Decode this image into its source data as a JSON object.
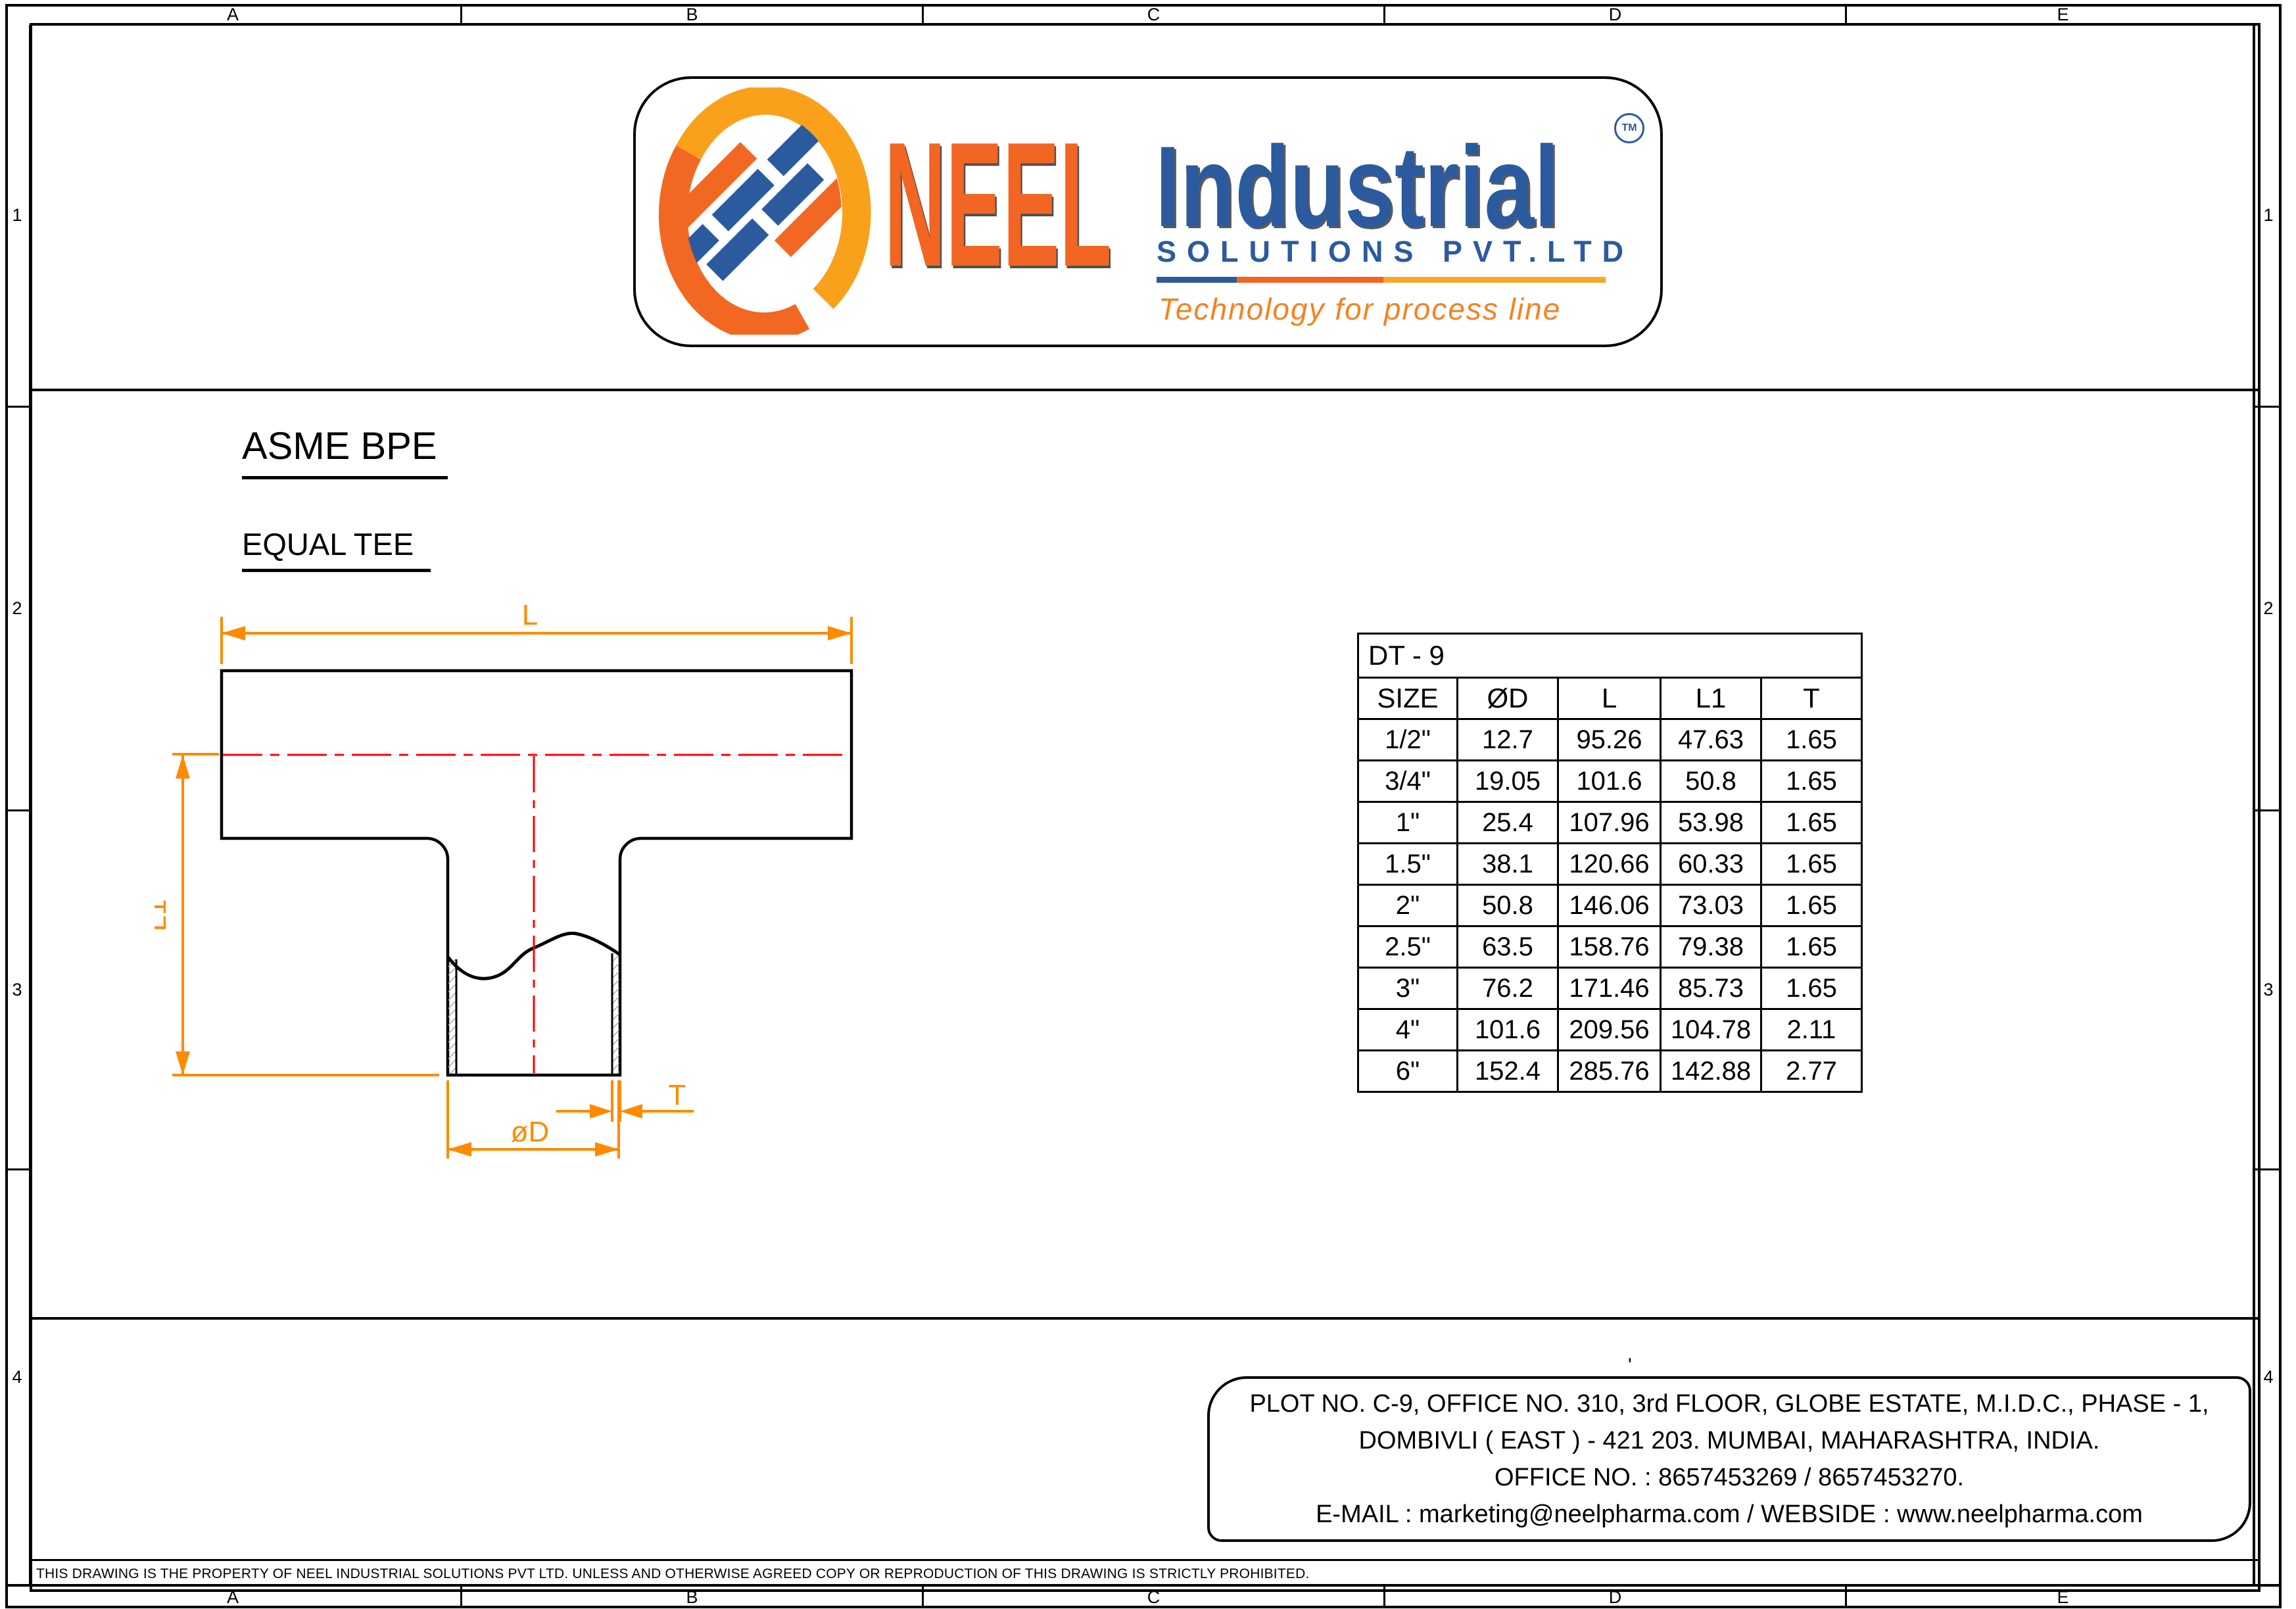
{
  "sheet": {
    "columns": [
      "A",
      "B",
      "C",
      "D",
      "E"
    ],
    "rows": [
      "1",
      "2",
      "3",
      "4"
    ],
    "disclaimer": "THIS DRAWING IS THE PROPERTY OF NEEL INDUSTRIAL SOLUTIONS PVT LTD. UNLESS AND OTHERWISE AGREED COPY OR REPRODUCTION OF THIS DRAWING IS STRICTLY PROHIBITED."
  },
  "logo": {
    "brand": "NEEL",
    "brand2": "Industrial",
    "tm": "TM",
    "subtitle": "SOLUTIONS PVT.LTD",
    "tagline": "Technology for process line",
    "colors": {
      "orange": "#F26522",
      "blue": "#2B5B9E",
      "amber": "#F9A11B"
    }
  },
  "titles": {
    "standard": "ASME BPE",
    "component": "EQUAL TEE"
  },
  "drawing": {
    "labels": {
      "length": "L",
      "branch_height": "L1",
      "diameter": "øD",
      "thickness": "T"
    },
    "colors": {
      "dimension": "#FF8A00",
      "centerline": "#FF0000",
      "outline": "#000000"
    }
  },
  "table": {
    "title": "DT - 9",
    "headers": [
      "SIZE",
      "ØD",
      "L",
      "L1",
      "T"
    ],
    "rows": [
      [
        "1/2\"",
        "12.7",
        "95.26",
        "47.63",
        "1.65"
      ],
      [
        "3/4\"",
        "19.05",
        "101.6",
        "50.8",
        "1.65"
      ],
      [
        "1\"",
        "25.4",
        "107.96",
        "53.98",
        "1.65"
      ],
      [
        "1.5\"",
        "38.1",
        "120.66",
        "60.33",
        "1.65"
      ],
      [
        "2\"",
        "50.8",
        "146.06",
        "73.03",
        "1.65"
      ],
      [
        "2.5\"",
        "63.5",
        "158.76",
        "79.38",
        "1.65"
      ],
      [
        "3\"",
        "76.2",
        "171.46",
        "85.73",
        "1.65"
      ],
      [
        "4\"",
        "101.6",
        "209.56",
        "104.78",
        "2.11"
      ],
      [
        "6\"",
        "152.4",
        "285.76",
        "142.88",
        "2.77"
      ]
    ]
  },
  "address": {
    "lines": [
      "PLOT NO. C-9, OFFICE NO. 310, 3rd FLOOR, GLOBE ESTATE, M.I.D.C., PHASE - 1,",
      "DOMBIVLI ( EAST ) - 421 203. MUMBAI, MAHARASHTRA, INDIA.",
      "OFFICE NO. : 8657453269 / 8657453270.",
      "E-MAIL : marketing@neelpharma.com / WEBSIDE : www.neelpharma.com"
    ],
    "stray_mark": "'"
  }
}
